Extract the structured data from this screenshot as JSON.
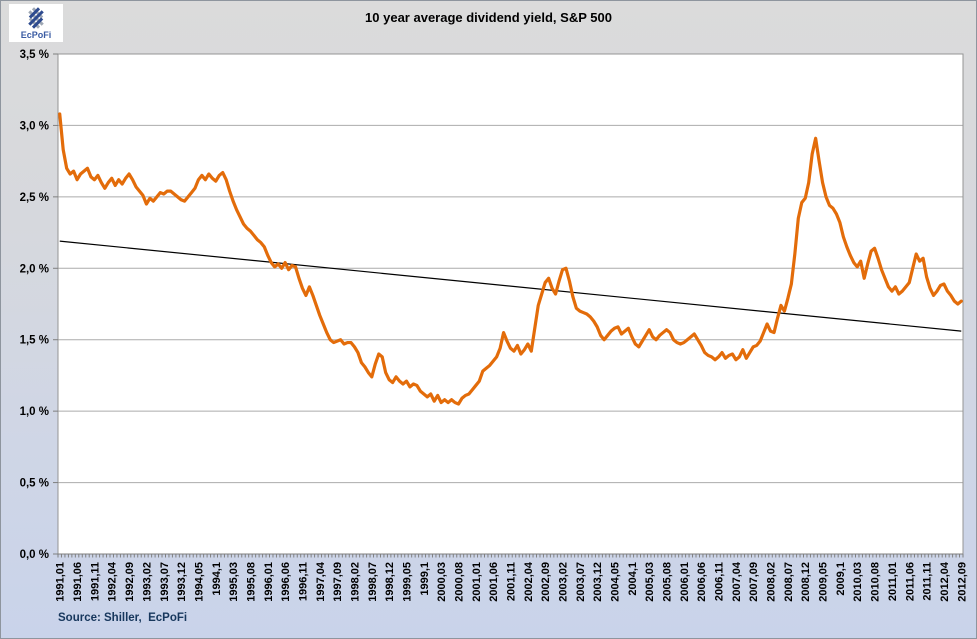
{
  "header": {
    "title": "10 year average dividend yield, S&P 500",
    "logo_text": "EcPoFi"
  },
  "footer": {
    "source_label": "Source: Shiller,  EcPoFi"
  },
  "chart_data": {
    "type": "line",
    "title": "10 year average dividend yield, S&P 500",
    "xlabel": "",
    "ylabel": "",
    "grid": true,
    "legend": "none",
    "y_axis": {
      "min": 0,
      "max": 3.5,
      "step": 0.5,
      "tick_labels": [
        "0,0 %",
        "0,5 %",
        "1,0 %",
        "1,5 %",
        "2,0 %",
        "2,5 %",
        "3,0 %",
        "3,5 %"
      ]
    },
    "x_axis": {
      "start": "1991,01",
      "end": "2012,09",
      "frequency": "monthly",
      "label_step": 5,
      "tick_labels": [
        "1991,01",
        "1991,06",
        "1991,11",
        "1992,04",
        "1992,09",
        "1993,02",
        "1993,07",
        "1993,12",
        "1994,05",
        "1994,1",
        "1995,03",
        "1995,08",
        "1996,01",
        "1996,06",
        "1996,11",
        "1997,04",
        "1997,09",
        "1998,02",
        "1998,07",
        "1998,12",
        "1999,05",
        "1999,1",
        "2000,03",
        "2000,08",
        "2001,01",
        "2001,06",
        "2001,11",
        "2002,04",
        "2002,09",
        "2003,02",
        "2003,07",
        "2003,12",
        "2004,05",
        "2004,1",
        "2005,03",
        "2005,08",
        "2006,01",
        "2006,06",
        "2006,11",
        "2007,04",
        "2007,09",
        "2008,02",
        "2008,07",
        "2008,12",
        "2009,05",
        "2009,1",
        "2010,03",
        "2010,08",
        "2011,01",
        "2011,06",
        "2011,11",
        "2012,04",
        "2012,09"
      ]
    },
    "series": [
      {
        "name": "10 year average dividend yield",
        "color": "#E36C0A",
        "values": [
          3.08,
          2.83,
          2.7,
          2.66,
          2.68,
          2.62,
          2.66,
          2.68,
          2.7,
          2.64,
          2.62,
          2.65,
          2.6,
          2.56,
          2.6,
          2.63,
          2.58,
          2.62,
          2.59,
          2.63,
          2.66,
          2.62,
          2.57,
          2.54,
          2.51,
          2.45,
          2.49,
          2.47,
          2.5,
          2.53,
          2.52,
          2.54,
          2.54,
          2.52,
          2.5,
          2.48,
          2.47,
          2.5,
          2.53,
          2.56,
          2.62,
          2.65,
          2.62,
          2.66,
          2.63,
          2.61,
          2.65,
          2.67,
          2.62,
          2.54,
          2.47,
          2.41,
          2.36,
          2.31,
          2.28,
          2.26,
          2.23,
          2.2,
          2.18,
          2.15,
          2.09,
          2.04,
          2.01,
          2.03,
          2.0,
          2.04,
          1.99,
          2.02,
          2.01,
          1.93,
          1.86,
          1.81,
          1.87,
          1.81,
          1.74,
          1.67,
          1.61,
          1.55,
          1.5,
          1.48,
          1.49,
          1.5,
          1.47,
          1.48,
          1.48,
          1.45,
          1.41,
          1.34,
          1.31,
          1.27,
          1.24,
          1.33,
          1.4,
          1.38,
          1.27,
          1.22,
          1.2,
          1.24,
          1.21,
          1.19,
          1.21,
          1.17,
          1.19,
          1.18,
          1.14,
          1.12,
          1.1,
          1.12,
          1.07,
          1.11,
          1.06,
          1.08,
          1.06,
          1.08,
          1.06,
          1.05,
          1.09,
          1.11,
          1.12,
          1.15,
          1.18,
          1.21,
          1.28,
          1.3,
          1.32,
          1.35,
          1.38,
          1.44,
          1.55,
          1.49,
          1.44,
          1.42,
          1.46,
          1.4,
          1.43,
          1.47,
          1.42,
          1.58,
          1.74,
          1.82,
          1.9,
          1.93,
          1.86,
          1.82,
          1.91,
          1.99,
          2.0,
          1.91,
          1.8,
          1.72,
          1.7,
          1.69,
          1.68,
          1.66,
          1.63,
          1.59,
          1.53,
          1.5,
          1.53,
          1.56,
          1.58,
          1.59,
          1.54,
          1.56,
          1.58,
          1.52,
          1.47,
          1.45,
          1.49,
          1.53,
          1.57,
          1.52,
          1.5,
          1.53,
          1.55,
          1.57,
          1.55,
          1.5,
          1.48,
          1.47,
          1.48,
          1.5,
          1.52,
          1.54,
          1.5,
          1.46,
          1.41,
          1.39,
          1.38,
          1.36,
          1.38,
          1.41,
          1.37,
          1.39,
          1.4,
          1.36,
          1.38,
          1.43,
          1.37,
          1.41,
          1.45,
          1.46,
          1.49,
          1.55,
          1.61,
          1.56,
          1.55,
          1.65,
          1.74,
          1.7,
          1.79,
          1.89,
          2.1,
          2.35,
          2.46,
          2.49,
          2.6,
          2.8,
          2.91,
          2.75,
          2.6,
          2.5,
          2.44,
          2.42,
          2.38,
          2.32,
          2.22,
          2.15,
          2.09,
          2.04,
          2.01,
          2.05,
          1.93,
          2.03,
          2.12,
          2.14,
          2.07,
          1.99,
          1.93,
          1.87,
          1.84,
          1.87,
          1.82,
          1.84,
          1.87,
          1.9,
          2.0,
          2.1,
          2.05,
          2.07,
          1.94,
          1.86,
          1.81,
          1.84,
          1.88,
          1.89,
          1.84,
          1.81,
          1.77,
          1.75,
          1.77
        ]
      },
      {
        "name": "linear trend",
        "color": "#000000",
        "shape": "straight-line",
        "start_value": 2.19,
        "end_value": 1.56
      }
    ],
    "colors": {
      "series": "#E36C0A",
      "trend": "#000000",
      "gridline": "#ABABAB",
      "axis": "#7F7F7F",
      "plot_border": "#949494",
      "plot_fill": "#FFFFFF",
      "tick_label": "#000000",
      "source_text": "#17375D",
      "logo_blue": "#2E4B8F",
      "logo_gray": "#9FA8B4"
    }
  }
}
